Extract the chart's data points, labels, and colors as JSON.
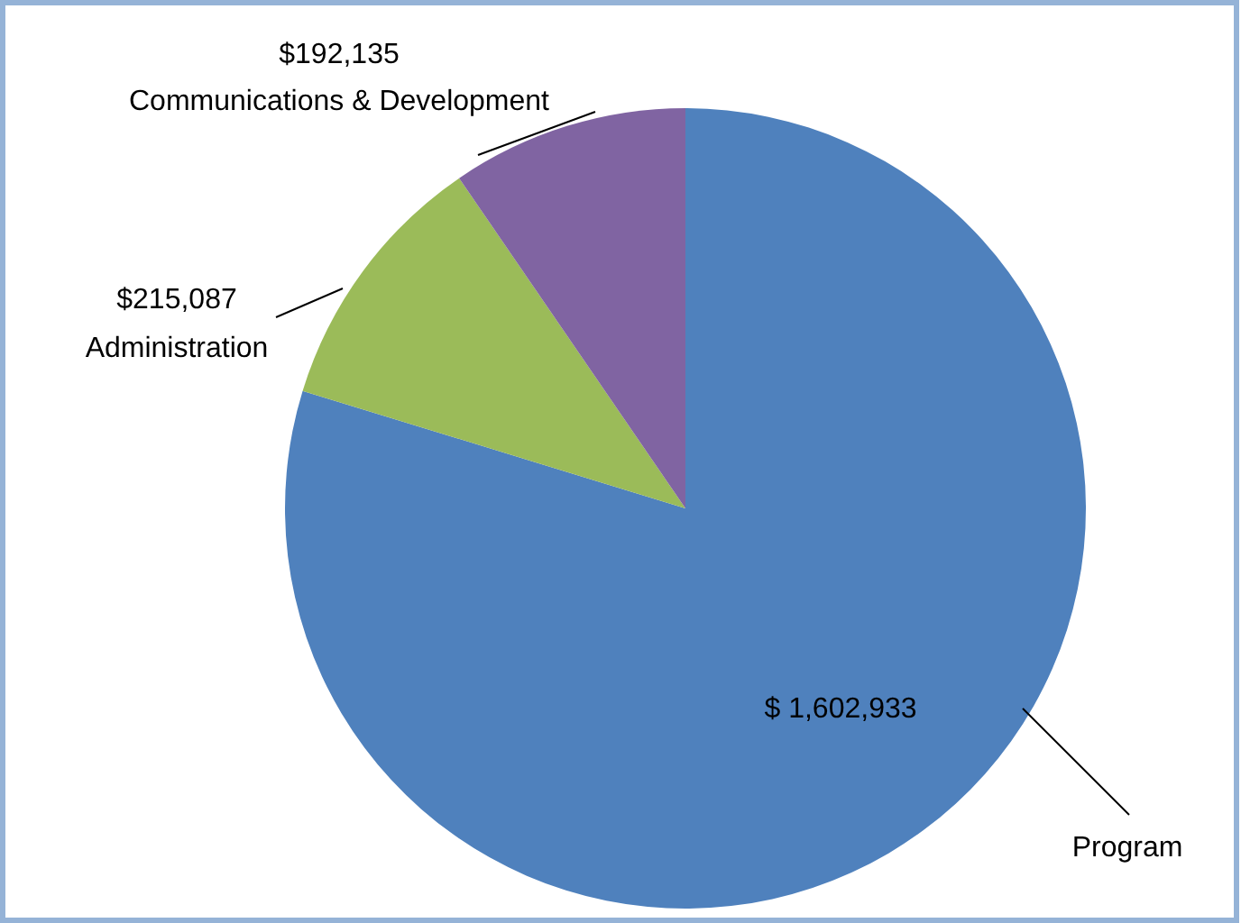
{
  "chart_data": {
    "type": "pie",
    "categories": [
      "Program",
      "Administration",
      "Communications & Development"
    ],
    "values": [
      1602933,
      215087,
      192135
    ],
    "colors": [
      "#4f81bd",
      "#9bbb59",
      "#8064a2"
    ],
    "value_labels": [
      "$ 1,602,933",
      "$215,087",
      "$192,135"
    ]
  }
}
